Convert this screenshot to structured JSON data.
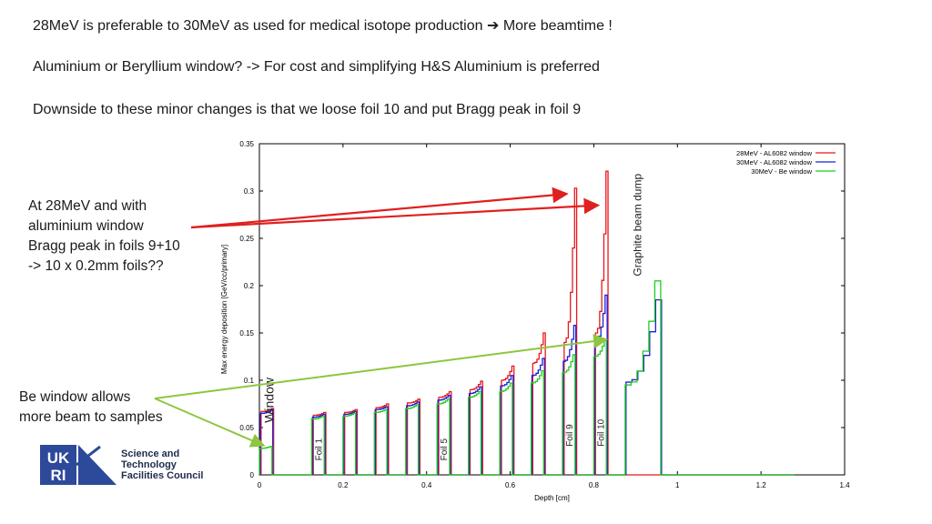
{
  "text": {
    "line1_a": "28MeV is preferable to 30MeV as used for medical isotope production",
    "line1_arrow": "➔",
    "line1_b": "More beamtime !",
    "line2": "Aluminium or Beryllium window? -> For cost and simplifying H&S Aluminium is preferred",
    "line3": "Downside to these minor changes is that we loose foil 10 and put Bragg peak in foil 9",
    "note_al": [
      "At 28MeV and with",
      "aluminium window",
      "Bragg peak in foils 9+10",
      "-> 10 x 0.2mm foils??"
    ],
    "note_be": [
      "Be window allows",
      "more beam to samples"
    ]
  },
  "colors": {
    "red": "#e8181c",
    "blue": "#1f1fd6",
    "green": "#22cc22",
    "arrow_red": "#e02020",
    "arrow_green": "#8dc63f",
    "logo_blue": "#2d4a9a"
  },
  "logo": {
    "mark": "UKRI",
    "lines": [
      "Science and",
      "Technology",
      "Facilities Council"
    ]
  },
  "chart_data": {
    "type": "line",
    "xlabel": "Depth [cm]",
    "ylabel": "Max energy deposition [GeV/cc/primary]",
    "xlim": [
      0,
      1.4
    ],
    "ylim": [
      0,
      0.35
    ],
    "xticks": [
      "0",
      "0.2",
      "0.4",
      "0.6",
      "0.8",
      "1",
      "1.2",
      "1.4"
    ],
    "yticks": [
      "0",
      "0.05",
      "0.1",
      "0.15",
      "0.2",
      "0.25",
      "0.3",
      "0.35"
    ],
    "legend_position": "top-right",
    "series": [
      {
        "name": "28MeV - AL6082 window",
        "color": "#e8181c"
      },
      {
        "name": "30MeV - AL6082 window",
        "color": "#1f1fd6"
      },
      {
        "name": "30MeV - Be window",
        "color": "#22cc22"
      }
    ],
    "annotations": [
      "Window",
      "Foil 1",
      "Foil 5",
      "Foil 9",
      "Foil 10",
      "Graphite beam dump"
    ],
    "regions": [
      {
        "label": "Window",
        "start": 0.0,
        "end": 0.03,
        "red": [
          0.067,
          0.07
        ],
        "blue": [
          0.065,
          0.068
        ],
        "green": [
          0.028,
          0.03
        ]
      },
      {
        "label": "Foil 1",
        "start": 0.125,
        "end": 0.155,
        "red": [
          0.063,
          0.066
        ],
        "blue": [
          0.061,
          0.064
        ],
        "green": [
          0.059,
          0.062
        ]
      },
      {
        "label": "",
        "start": 0.2,
        "end": 0.23,
        "red": [
          0.066,
          0.069
        ],
        "blue": [
          0.064,
          0.067
        ],
        "green": [
          0.062,
          0.065
        ]
      },
      {
        "label": "",
        "start": 0.275,
        "end": 0.305,
        "red": [
          0.071,
          0.075
        ],
        "blue": [
          0.069,
          0.072
        ],
        "green": [
          0.066,
          0.069
        ]
      },
      {
        "label": "",
        "start": 0.35,
        "end": 0.38,
        "red": [
          0.076,
          0.08
        ],
        "blue": [
          0.073,
          0.077
        ],
        "green": [
          0.07,
          0.074
        ]
      },
      {
        "label": "Foil 5",
        "start": 0.425,
        "end": 0.455,
        "red": [
          0.082,
          0.088
        ],
        "blue": [
          0.079,
          0.084
        ],
        "green": [
          0.075,
          0.08
        ]
      },
      {
        "label": "",
        "start": 0.5,
        "end": 0.53,
        "red": [
          0.09,
          0.099
        ],
        "blue": [
          0.086,
          0.093
        ],
        "green": [
          0.082,
          0.088
        ]
      },
      {
        "label": "",
        "start": 0.575,
        "end": 0.605,
        "red": [
          0.1,
          0.115
        ],
        "blue": [
          0.094,
          0.105
        ],
        "green": [
          0.088,
          0.097
        ]
      },
      {
        "label": "",
        "start": 0.65,
        "end": 0.68,
        "red": [
          0.118,
          0.15
        ],
        "blue": [
          0.105,
          0.123
        ],
        "green": [
          0.097,
          0.11
        ]
      },
      {
        "label": "Foil 9",
        "start": 0.725,
        "end": 0.755,
        "red": [
          0.14,
          0.303
        ],
        "blue": [
          0.12,
          0.158
        ],
        "green": [
          0.108,
          0.127
        ]
      },
      {
        "label": "Foil 10",
        "start": 0.8,
        "end": 0.83,
        "red": [
          0.15,
          0.321
        ],
        "blue": [
          0.14,
          0.19
        ],
        "green": [
          0.125,
          0.143
        ]
      },
      {
        "label": "Graphite beam dump",
        "start": 0.875,
        "end": 0.96,
        "red": [
          0.0,
          0.0
        ],
        "blue": [
          0.098,
          0.185
        ],
        "green": [
          0.095,
          0.205
        ]
      }
    ]
  }
}
